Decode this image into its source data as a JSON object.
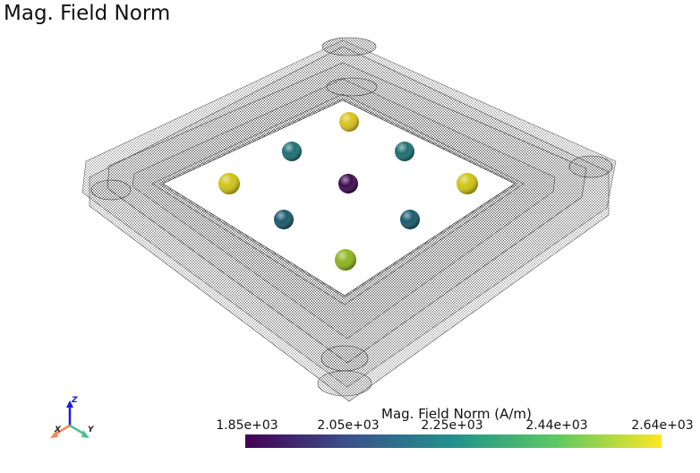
{
  "title": "Mag. Field Norm",
  "colorbar": {
    "title": "Mag. Field Norm (A/m)",
    "ticks": [
      "1.85e+03",
      "2.05e+03",
      "2.25e+03",
      "2.44e+03",
      "2.64e+03"
    ],
    "colormap": "viridis",
    "stops": [
      "#440154",
      "#3b528b",
      "#21918c",
      "#5ec962",
      "#fde725"
    ]
  },
  "axes_widget": {
    "x": "X",
    "y": "Y",
    "z": "Z",
    "colors": {
      "x": "#f08a55",
      "y": "#4fbf8c",
      "z": "#1a1adb"
    }
  },
  "spheres": [
    {
      "name": "top",
      "color": "#d8c21a"
    },
    {
      "name": "upper-left",
      "color": "#1e6f72"
    },
    {
      "name": "upper-right",
      "color": "#1e6f72"
    },
    {
      "name": "left",
      "color": "#cfc313"
    },
    {
      "name": "center",
      "color": "#3f0a4e"
    },
    {
      "name": "right",
      "color": "#cfc313"
    },
    {
      "name": "lower-left",
      "color": "#19596a"
    },
    {
      "name": "lower-right",
      "color": "#19596a"
    },
    {
      "name": "bottom",
      "color": "#8cb41e"
    }
  ]
}
